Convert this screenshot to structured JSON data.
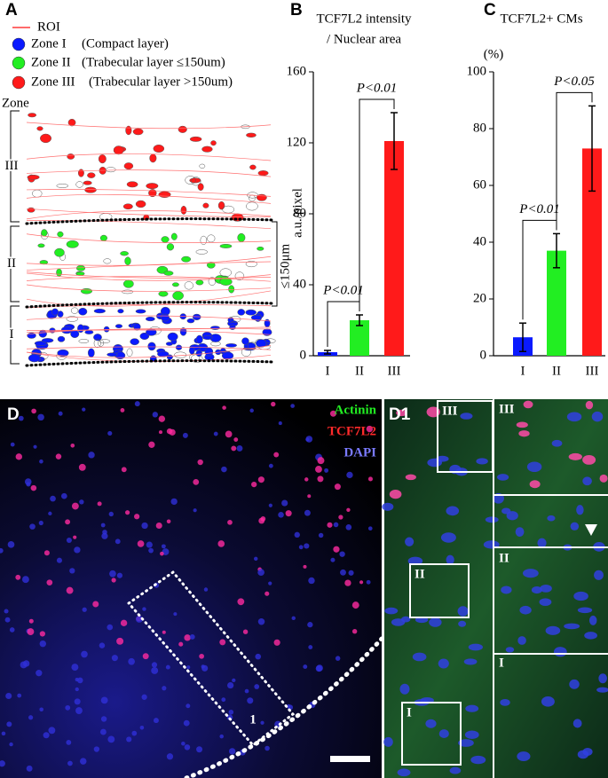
{
  "chart_data": [
    {
      "type": "bar",
      "panel": "B",
      "title": [
        "TCF7L2 intensity",
        "/ Nuclear area"
      ],
      "y_label": "a.u./pixel",
      "categories": [
        "I",
        "II",
        "III"
      ],
      "values": [
        2,
        20,
        121
      ],
      "errors": [
        1,
        3,
        16
      ],
      "colors": [
        "#0a1aff",
        "#22ee22",
        "#ff1a1a"
      ],
      "ylim": [
        0,
        160
      ],
      "yticks": [
        0,
        40,
        80,
        120,
        160
      ],
      "annotations": [
        "P<0.01",
        "P<0.01"
      ]
    },
    {
      "type": "bar",
      "panel": "C",
      "title": [
        "TCF7L2+ CMs"
      ],
      "y_label": "(%)",
      "categories": [
        "I",
        "II",
        "III"
      ],
      "values": [
        6.5,
        37,
        73
      ],
      "errors": [
        5,
        6,
        15
      ],
      "colors": [
        "#0a1aff",
        "#22ee22",
        "#ff1a1a"
      ],
      "ylim": [
        0,
        100
      ],
      "yticks": [
        0,
        20,
        40,
        60,
        80,
        100
      ],
      "annotations": [
        "P<0.01",
        "P<0.05"
      ]
    }
  ],
  "panel_a": {
    "label": "A",
    "legend": [
      "ROI",
      "Zone I",
      "Zone II",
      "Zone III"
    ],
    "legend_notes": [
      "(Compact layer)",
      "(Trabecular layer ≤150um)",
      "(Trabecular layer >150um)"
    ],
    "axis_title": "Zone",
    "zones": [
      "III",
      "II",
      "I"
    ],
    "scale": "≤150μm"
  },
  "panel_d": {
    "label": "D",
    "channels": [
      "Actinin",
      "TCF7L2",
      "DAPI"
    ],
    "region": "1"
  },
  "panel_d1": {
    "label": "D1",
    "boxes": [
      "III",
      "II",
      "I"
    ],
    "insets": [
      "III",
      "II",
      "I"
    ]
  }
}
